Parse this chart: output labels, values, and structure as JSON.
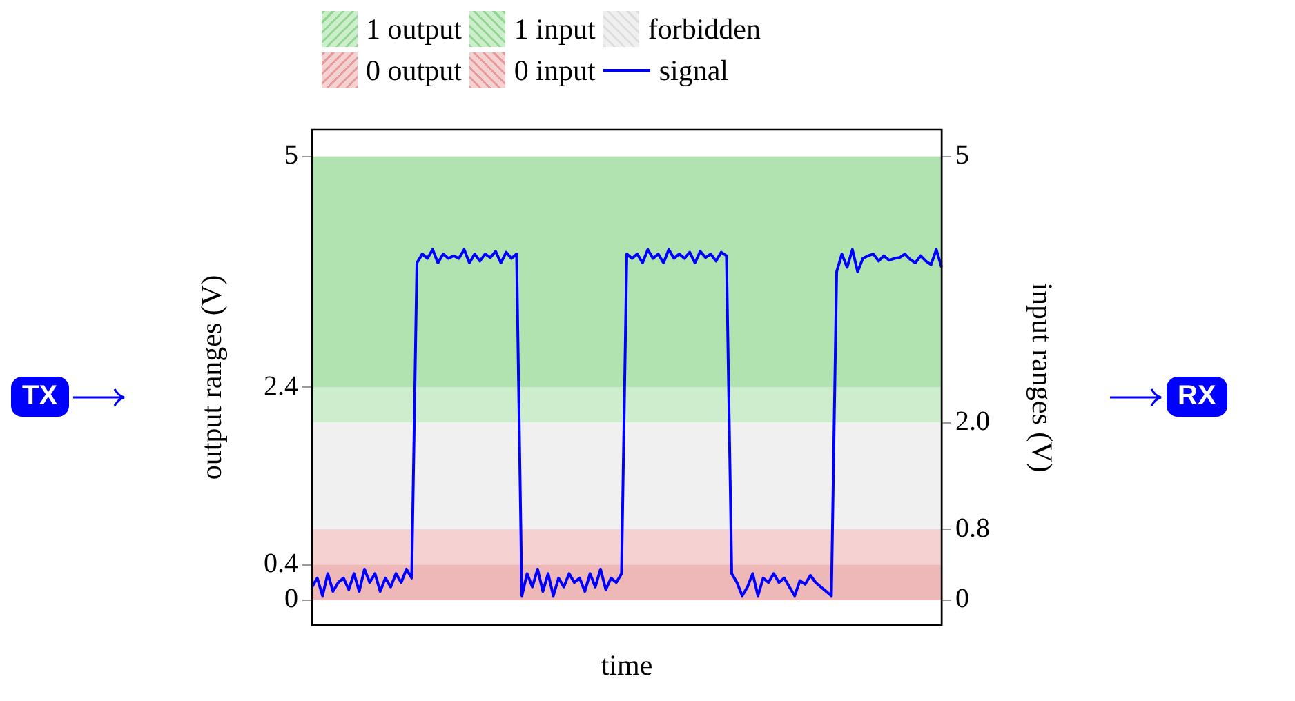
{
  "chart_data": {
    "type": "line",
    "xlabel": "time",
    "ylabel": "output ranges (V)",
    "y2label": "input ranges (V)",
    "categories": [
      null,
      null,
      null,
      null,
      null,
      null,
      null,
      null,
      null,
      null,
      null,
      null,
      null,
      null,
      null,
      null,
      null,
      null,
      null,
      null,
      null,
      null,
      null,
      null,
      null,
      null,
      null,
      null,
      null,
      null,
      null,
      null,
      null,
      null,
      null,
      null,
      null,
      null,
      null,
      null,
      null,
      null,
      null,
      null,
      null,
      null,
      null,
      null,
      null,
      null,
      null,
      null,
      null,
      null,
      null,
      null,
      null,
      null,
      null,
      null,
      null,
      null,
      null,
      null,
      null,
      null,
      null,
      null,
      null,
      null,
      null,
      null,
      null,
      null,
      null,
      null,
      null,
      null,
      null,
      null,
      null,
      null,
      null,
      null,
      null,
      null,
      null,
      null,
      null,
      null,
      null,
      null,
      null,
      null,
      null,
      null,
      null,
      null,
      null,
      null,
      null,
      null,
      null,
      null,
      null,
      null,
      null,
      null,
      null,
      null,
      null,
      null,
      null,
      null,
      null,
      null,
      null,
      null,
      null,
      null,
      null
    ],
    "series": [
      {
        "name": "signal",
        "color": "#0000ff",
        "values": [
          0.15,
          0.25,
          0.05,
          0.3,
          0.1,
          0.2,
          0.25,
          0.12,
          0.3,
          0.1,
          0.35,
          0.2,
          0.3,
          0.1,
          0.25,
          0.15,
          0.3,
          0.2,
          0.35,
          0.25,
          3.8,
          3.9,
          3.85,
          3.95,
          3.8,
          3.9,
          3.85,
          3.88,
          3.85,
          3.95,
          3.8,
          3.9,
          3.82,
          3.9,
          3.86,
          3.93,
          3.8,
          3.92,
          3.85,
          3.9,
          0.05,
          0.3,
          0.15,
          0.35,
          0.1,
          0.3,
          0.05,
          0.25,
          0.15,
          0.3,
          0.2,
          0.25,
          0.1,
          0.3,
          0.15,
          0.35,
          0.12,
          0.25,
          0.2,
          0.3,
          3.9,
          3.85,
          3.9,
          3.8,
          3.95,
          3.85,
          3.9,
          3.8,
          3.95,
          3.85,
          3.9,
          3.85,
          3.92,
          3.8,
          3.93,
          3.86,
          3.9,
          3.82,
          3.92,
          3.88,
          0.3,
          0.2,
          0.05,
          0.15,
          0.3,
          0.05,
          0.25,
          0.2,
          0.3,
          0.2,
          0.25,
          0.15,
          0.05,
          0.22,
          0.18,
          0.28,
          0.2,
          0.15,
          0.1,
          0.05,
          3.7,
          3.9,
          3.75,
          3.95,
          3.7,
          3.85,
          3.88,
          3.9,
          3.82,
          3.88,
          3.83,
          3.85,
          3.86,
          3.9,
          3.84,
          3.8,
          3.88,
          3.82,
          3.78,
          3.95,
          3.75
        ]
      }
    ],
    "ylim": [
      -0.28,
      5.3
    ],
    "yticks": [
      0,
      0.4,
      2.4,
      5
    ],
    "y2lim": [
      -0.28,
      5.3
    ],
    "y2ticks": [
      0,
      0.8,
      {
        "value": 2,
        "label": "2.0"
      },
      5
    ],
    "bands": [
      {
        "axis": "y",
        "from": 2.4,
        "to": 5,
        "label": "1 output",
        "color": "#90d890"
      },
      {
        "axis": "y2",
        "from": 2,
        "to": 5,
        "label": "1 input",
        "color": "#90d890"
      },
      {
        "axis": "y2",
        "from": 0.8,
        "to": 2,
        "label": "forbidden",
        "color": "#dddddd"
      },
      {
        "axis": "y",
        "from": 0,
        "to": 0.4,
        "label": "0 output",
        "color": "#e89a9a"
      },
      {
        "axis": "y2",
        "from": 0,
        "to": 0.8,
        "label": "0 input",
        "color": "#e89a9a"
      }
    ],
    "legend": "top",
    "annotations": [
      "TX",
      "RX"
    ]
  }
}
